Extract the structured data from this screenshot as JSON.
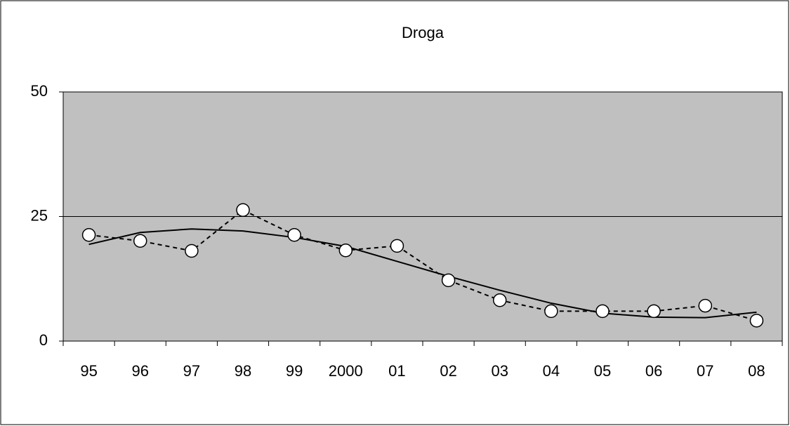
{
  "chart_data": {
    "type": "line",
    "title": "Droga",
    "categories": [
      "95",
      "96",
      "97",
      "98",
      "99",
      "2000",
      "01",
      "02",
      "03",
      "04",
      "05",
      "06",
      "07",
      "08"
    ],
    "series": [
      {
        "color": "#000000",
        "line": "dashed",
        "marker": "circle",
        "values": [
          21.3,
          20.1,
          18.1,
          26.3,
          21.3,
          18.2,
          19.1,
          12.2,
          8.2,
          6.0,
          6.0,
          6.0,
          7.1,
          4.1
        ]
      },
      {
        "color": "#000000",
        "line": "solid",
        "marker": "none",
        "values": [
          19.4,
          21.8,
          22.5,
          22.1,
          20.8,
          19.0,
          16.0,
          13.0,
          10.2,
          7.6,
          5.6,
          4.8,
          4.7,
          5.8
        ]
      }
    ],
    "ylim": [
      0,
      50
    ],
    "yticks": [
      0,
      25,
      50
    ],
    "grid": true,
    "plot_background": "#c0c0c0"
  }
}
